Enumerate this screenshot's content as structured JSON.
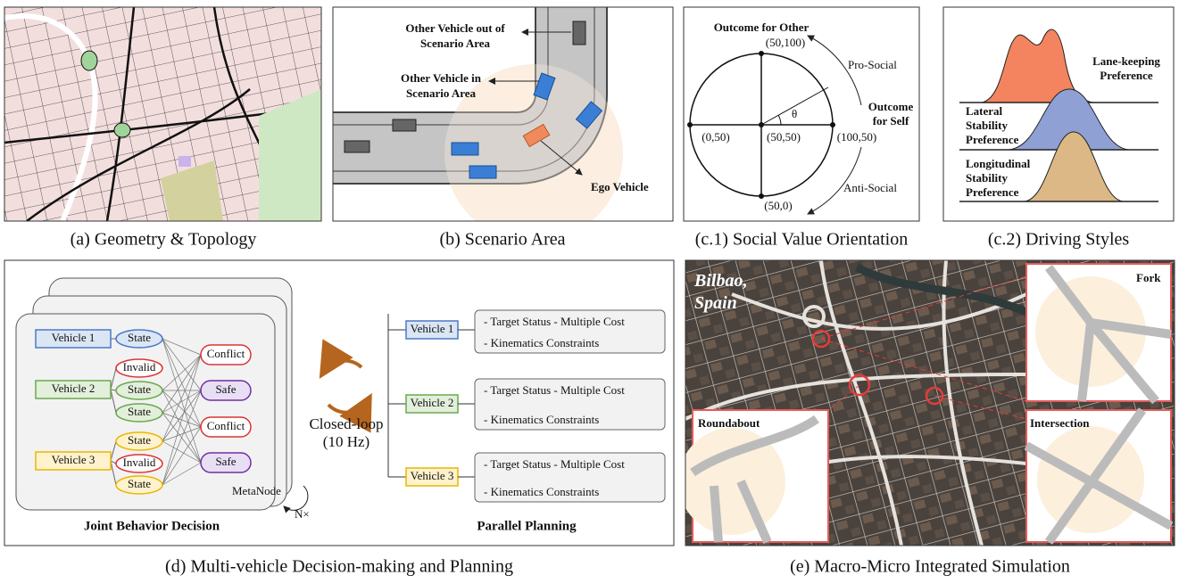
{
  "a": {
    "caption": "(a) Geometry & Topology"
  },
  "b": {
    "caption": "(b) Scenario Area",
    "out_label": [
      "Other Vehicle out of",
      "Scenario Area"
    ],
    "in_label": [
      "Other Vehicle in",
      "Scenario Area"
    ],
    "ego_label": "Ego Vehicle"
  },
  "c1": {
    "caption": "(c.1) Social Value Orientation",
    "y_title": "Outcome for Other",
    "x_title": [
      "Outcome",
      "for Self"
    ],
    "top": "(50,100)",
    "left": "(0,50)",
    "center": "(50,50)",
    "right": "(100,50)",
    "bottom": "(50,0)",
    "theta": "θ",
    "pro": "Pro-Social",
    "anti": "Anti-Social"
  },
  "c2": {
    "caption": "(c.2) Driving Styles",
    "styles": [
      [
        "Lane-keeping",
        "Preference"
      ],
      [
        "Lateral",
        "Stability",
        "Preference"
      ],
      [
        "Longitudinal",
        "Stability",
        "Preference"
      ]
    ]
  },
  "d": {
    "caption": "(d) Multi-vehicle Decision-making and Planning",
    "vehicles": [
      "Vehicle 1",
      "Vehicle 2",
      "Vehicle 3"
    ],
    "state_nodes": [
      "State",
      "Invalid",
      "State",
      "State",
      "State",
      "Invalid",
      "State"
    ],
    "outcome_nodes": [
      "Conflict",
      "Safe",
      "Conflict",
      "Safe"
    ],
    "metanode": "MetaNode",
    "repeat": "N×",
    "loop": [
      "Closed-loop",
      "(10 Hz)"
    ],
    "left_title": "Joint Behavior Decision",
    "right_title": "Parallel Planning",
    "plans": [
      {
        "vehicle": "Vehicle 1",
        "lines": [
          "- Target Status - Multiple Cost",
          "- Kinematics Constraints"
        ]
      },
      {
        "vehicle": "Vehicle 2",
        "lines": [
          "- Target Status - Multiple Cost",
          "- Kinematics Constraints"
        ]
      },
      {
        "vehicle": "Vehicle 3",
        "lines": [
          "- Target Status - Multiple Cost",
          "- Kinematics Constraints"
        ]
      }
    ]
  },
  "e": {
    "caption": "(e) Macro-Micro Integrated Simulation",
    "city": [
      "Bilbao,",
      "Spain"
    ],
    "insets": [
      "Fork",
      "Roundabout",
      "Intersection"
    ]
  }
}
